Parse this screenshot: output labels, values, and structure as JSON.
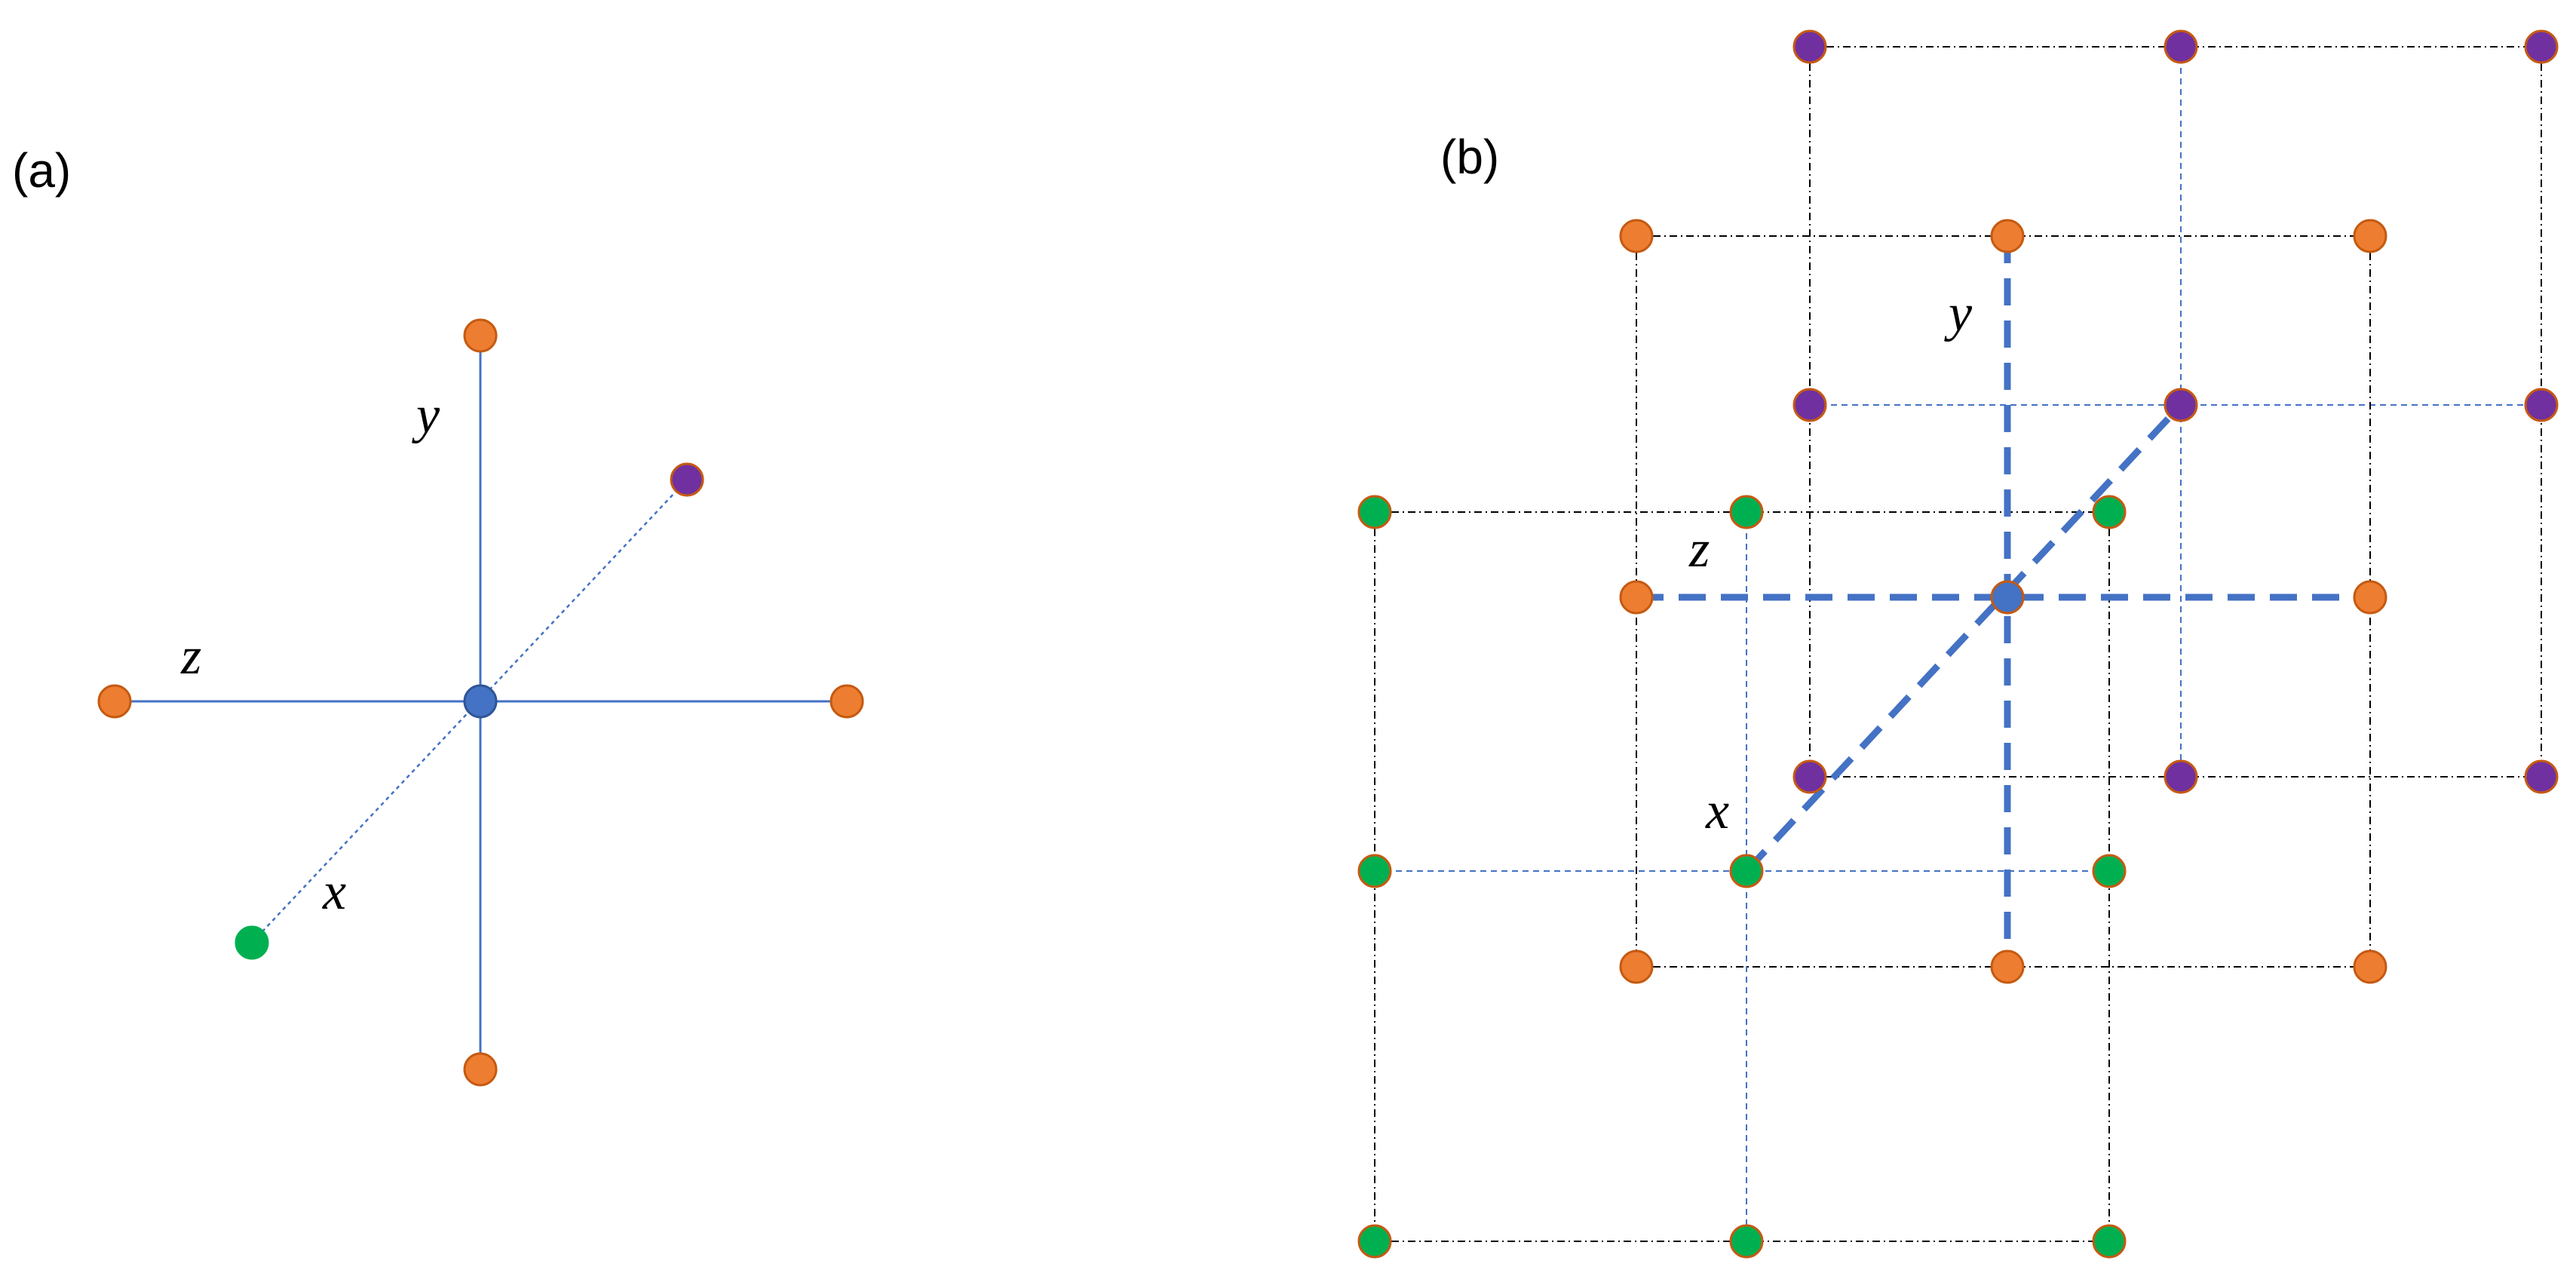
{
  "panel_a": {
    "label": "(a)",
    "axis_labels": {
      "x": "x",
      "y": "y",
      "z": "z"
    }
  },
  "panel_b": {
    "label": "(b)",
    "axis_labels": {
      "x": "x",
      "y": "y",
      "z": "z"
    }
  },
  "colors": {
    "center_node": "#4472C4",
    "y_node": "#ED7D31",
    "z_node": "#ED7D31",
    "x_front_node": "#00B050",
    "x_back_node": "#7030A0",
    "node_outline": "#C55A11",
    "axis_line": "#4472C4",
    "grid_line": "#000000",
    "grid_blue_line": "#4472C4"
  }
}
